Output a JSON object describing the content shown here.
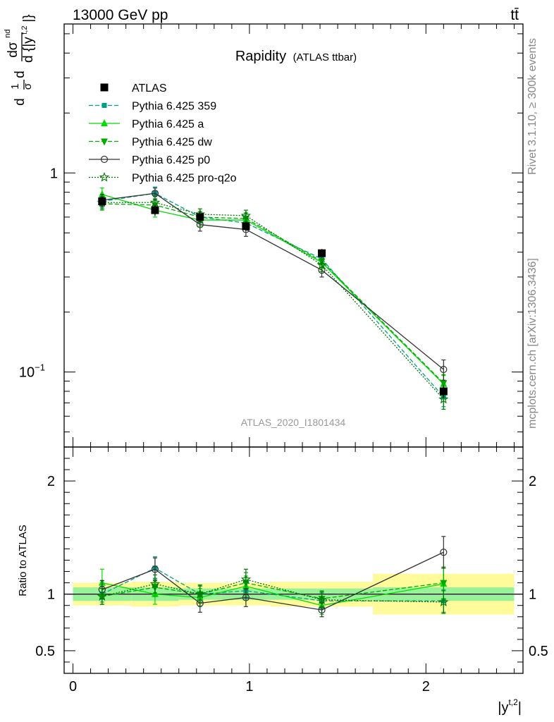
{
  "header": {
    "left": "13000 GeV pp",
    "right": "tt̄"
  },
  "title": {
    "main": "Rapidity",
    "sub": "(ATLAS ttbar)"
  },
  "side_labels": {
    "rivet": "Rivet 3.1.10, ≥ 300k events",
    "mcplots": "mcplots.cern.ch [arXiv:1306.3436]"
  },
  "watermark": "ATLAS_2020_I1801434",
  "ylabel_main": {
    "frac_d": "d",
    "frac_1": "1",
    "frac_sigma": "σ",
    "frac_d2": "d",
    "num": "dσ",
    "num_sup": "nd",
    "den": "d {|y",
    "den_sup": "t,2",
    "den_end": "|}"
  },
  "ylabel_ratio": "Ratio to ATLAS",
  "xlabel": {
    "text": "|y",
    "sup": "t,2",
    "end": "|"
  },
  "chart_data": {
    "type": "line",
    "main": {
      "yscale": "log",
      "ylim": [
        0.042,
        5.6
      ],
      "xlim": [
        -0.05,
        2.55
      ],
      "xticks": [
        {
          "v": 0,
          "label": "0"
        },
        {
          "v": 1,
          "label": "1"
        },
        {
          "v": 2,
          "label": "2"
        }
      ],
      "yticks": [
        {
          "v": 1,
          "label": "1"
        },
        {
          "v": 0.1,
          "label": "10",
          "sup": "−1"
        }
      ]
    },
    "ratio": {
      "yscale": "linear",
      "ylim": [
        0.3,
        2.3
      ],
      "yticks": [
        {
          "v": 2,
          "label": "2"
        },
        {
          "v": 1,
          "label": "1"
        },
        {
          "v": 0.5,
          "label": "0.5"
        }
      ]
    },
    "bins": [
      {
        "lo": 0.0,
        "hi": 0.33,
        "center": 0.165
      },
      {
        "lo": 0.33,
        "hi": 0.6,
        "center": 0.465
      },
      {
        "lo": 0.6,
        "hi": 0.84,
        "center": 0.72
      },
      {
        "lo": 0.84,
        "hi": 1.12,
        "center": 0.98
      },
      {
        "lo": 1.12,
        "hi": 1.7,
        "center": 1.41
      },
      {
        "lo": 1.7,
        "hi": 2.5,
        "center": 2.1
      }
    ],
    "data": {
      "name": "ATLAS",
      "values": [
        0.72,
        0.65,
        0.6,
        0.54,
        0.395,
        0.08
      ],
      "errors": [
        0.04,
        0.04,
        0.035,
        0.03,
        0.02,
        0.006
      ],
      "ratio_band_stat": [
        0.06,
        0.06,
        0.05,
        0.05,
        0.05,
        0.06
      ],
      "ratio_band_total": [
        0.1,
        0.11,
        0.1,
        0.1,
        0.11,
        0.18
      ]
    },
    "series": [
      {
        "name": "Pythia 6.425 359",
        "color": "#00a088",
        "dash": "6,3",
        "marker": "square-small",
        "values": [
          0.72,
          0.79,
          0.6,
          0.56,
          0.37,
          0.075
        ],
        "errors": [
          0.05,
          0.06,
          0.04,
          0.04,
          0.025,
          0.008
        ],
        "ratio": [
          1.0,
          1.23,
          1.0,
          1.03,
          0.94,
          0.94
        ],
        "ratio_err": [
          0.07,
          0.1,
          0.07,
          0.07,
          0.07,
          0.1
        ]
      },
      {
        "name": "Pythia 6.425 a",
        "color": "#00dd00",
        "dash": "",
        "marker": "triangle-up",
        "values": [
          0.78,
          0.65,
          0.58,
          0.58,
          0.355,
          0.087
        ],
        "errors": [
          0.06,
          0.05,
          0.04,
          0.04,
          0.025,
          0.009
        ],
        "ratio": [
          1.1,
          1.0,
          0.97,
          1.07,
          0.9,
          1.09
        ],
        "ratio_err": [
          0.12,
          0.09,
          0.08,
          0.09,
          0.08,
          0.14
        ]
      },
      {
        "name": "Pythia 6.425 dw",
        "color": "#00aa00",
        "dash": "6,3",
        "marker": "triangle-down",
        "values": [
          0.7,
          0.69,
          0.6,
          0.59,
          0.36,
          0.088
        ],
        "errors": [
          0.05,
          0.05,
          0.04,
          0.04,
          0.025,
          0.009
        ],
        "ratio": [
          0.98,
          1.06,
          1.0,
          1.1,
          0.96,
          1.1
        ],
        "ratio_err": [
          0.07,
          0.08,
          0.08,
          0.09,
          0.07,
          0.14
        ]
      },
      {
        "name": "Pythia 6.425 p0",
        "color": "#333333",
        "dash": "",
        "marker": "circle-open",
        "values": [
          0.73,
          0.79,
          0.55,
          0.52,
          0.325,
          0.103
        ],
        "errors": [
          0.05,
          0.05,
          0.04,
          0.04,
          0.025,
          0.012
        ],
        "ratio": [
          1.04,
          1.22,
          0.92,
          0.97,
          0.86,
          1.37
        ],
        "ratio_err": [
          0.08,
          0.1,
          0.08,
          0.08,
          0.06,
          0.14
        ]
      },
      {
        "name": "Pythia 6.425 pro-q2o",
        "color": "#007700",
        "dash": "2,2",
        "marker": "star-open",
        "values": [
          0.71,
          0.71,
          0.62,
          0.61,
          0.345,
          0.073
        ],
        "errors": [
          0.05,
          0.05,
          0.04,
          0.04,
          0.025,
          0.008
        ],
        "ratio": [
          0.98,
          1.09,
          1.0,
          1.13,
          0.95,
          0.93
        ],
        "ratio_err": [
          0.07,
          0.08,
          0.08,
          0.09,
          0.07,
          0.1
        ]
      }
    ]
  }
}
